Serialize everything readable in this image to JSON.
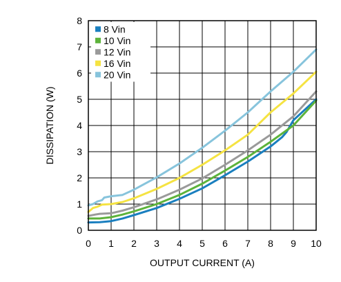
{
  "chart_data": {
    "type": "line",
    "xlabel": "OUTPUT CURRENT (A)",
    "ylabel": "DISSIPATION (W)",
    "xlim": [
      0,
      10
    ],
    "ylim": [
      0,
      8
    ],
    "x_ticks": [
      0,
      1,
      2,
      3,
      4,
      5,
      6,
      7,
      8,
      9,
      10
    ],
    "y_ticks": [
      0,
      1,
      2,
      3,
      4,
      5,
      6,
      7,
      8
    ],
    "grid": true,
    "legend_position": "top-left",
    "series": [
      {
        "name": "8 Vin",
        "color": "#1a7fbf",
        "points": [
          [
            0,
            0.3
          ],
          [
            0.5,
            0.31
          ],
          [
            1,
            0.35
          ],
          [
            1.5,
            0.45
          ],
          [
            2,
            0.58
          ],
          [
            3,
            0.85
          ],
          [
            4,
            1.2
          ],
          [
            5,
            1.6
          ],
          [
            6,
            2.1
          ],
          [
            7,
            2.62
          ],
          [
            8,
            3.2
          ],
          [
            8.5,
            3.55
          ],
          [
            8.7,
            3.75
          ],
          [
            9,
            4.2
          ],
          [
            9.5,
            4.6
          ],
          [
            10,
            5.0
          ]
        ]
      },
      {
        "name": "10 Vin",
        "color": "#5db33b",
        "points": [
          [
            0,
            0.45
          ],
          [
            0.5,
            0.45
          ],
          [
            1,
            0.5
          ],
          [
            1.5,
            0.6
          ],
          [
            2,
            0.72
          ],
          [
            3,
            1.0
          ],
          [
            4,
            1.35
          ],
          [
            5,
            1.78
          ],
          [
            6,
            2.28
          ],
          [
            7,
            2.8
          ],
          [
            8,
            3.38
          ],
          [
            9,
            4.0
          ],
          [
            10,
            4.95
          ]
        ]
      },
      {
        "name": "12 Vin",
        "color": "#9a9a9a",
        "points": [
          [
            0,
            0.55
          ],
          [
            0.3,
            0.6
          ],
          [
            0.5,
            0.63
          ],
          [
            1,
            0.65
          ],
          [
            1.5,
            0.75
          ],
          [
            2,
            0.88
          ],
          [
            3,
            1.18
          ],
          [
            4,
            1.55
          ],
          [
            5,
            1.98
          ],
          [
            6,
            2.5
          ],
          [
            7,
            3.05
          ],
          [
            8,
            3.65
          ],
          [
            9,
            4.35
          ],
          [
            10,
            5.3
          ]
        ]
      },
      {
        "name": "16 Vin",
        "color": "#f5e342",
        "points": [
          [
            0,
            0.7
          ],
          [
            0.2,
            0.85
          ],
          [
            0.4,
            0.9
          ],
          [
            0.6,
            0.98
          ],
          [
            1,
            1.0
          ],
          [
            1.5,
            1.08
          ],
          [
            2,
            1.22
          ],
          [
            3,
            1.58
          ],
          [
            4,
            2.0
          ],
          [
            5,
            2.5
          ],
          [
            6,
            3.05
          ],
          [
            7,
            3.65
          ],
          [
            8,
            4.5
          ],
          [
            9,
            5.22
          ],
          [
            10,
            6.05
          ]
        ]
      },
      {
        "name": "20 Vin",
        "color": "#87c4dc",
        "points": [
          [
            0,
            0.95
          ],
          [
            0.2,
            1.0
          ],
          [
            0.4,
            1.1
          ],
          [
            0.6,
            1.15
          ],
          [
            0.7,
            1.25
          ],
          [
            1,
            1.3
          ],
          [
            1.5,
            1.35
          ],
          [
            2,
            1.55
          ],
          [
            3,
            2.02
          ],
          [
            4,
            2.55
          ],
          [
            5,
            3.15
          ],
          [
            6,
            3.8
          ],
          [
            7,
            4.5
          ],
          [
            8,
            5.3
          ],
          [
            9,
            6.05
          ],
          [
            10,
            6.9
          ]
        ]
      }
    ]
  }
}
